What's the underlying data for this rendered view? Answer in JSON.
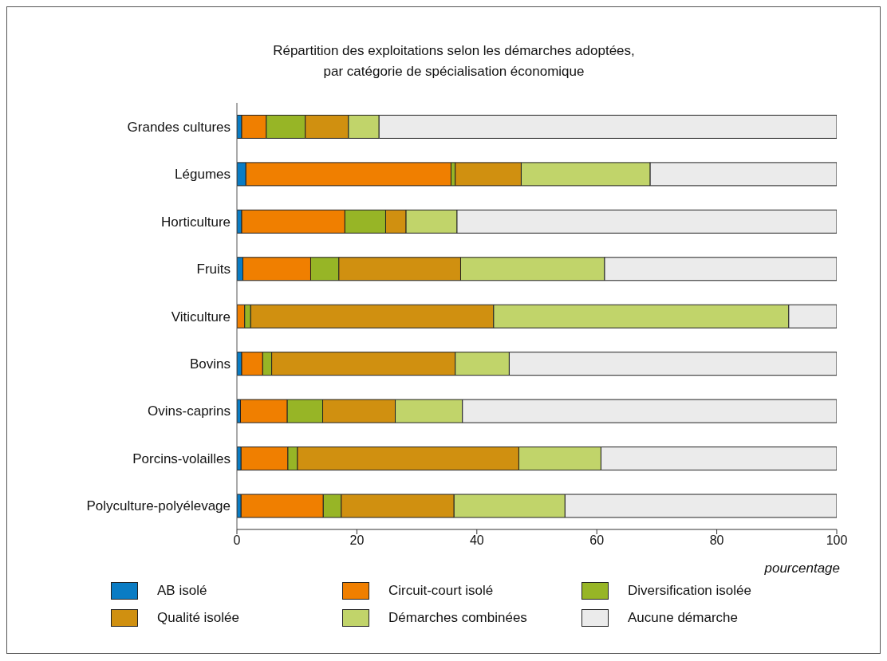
{
  "chart_data": {
    "type": "bar",
    "orientation": "horizontal",
    "stacked": true,
    "title": "Répartition des exploitations selon les démarches adoptées,\npar catégorie de spécialisation économique",
    "xlabel": "pourcentage",
    "categories": [
      "Grandes cultures",
      "Légumes",
      "Horticulture",
      "Fruits",
      "Viticulture",
      "Bovins",
      "Ovins-caprins",
      "Porcins-volailles",
      "Polyculture-polyélevage"
    ],
    "series": [
      {
        "name": "AB isolé",
        "color": "#0a7cc4",
        "values": [
          0.8,
          1.5,
          0.8,
          1.0,
          0,
          0.8,
          0.6,
          0.7,
          0.7
        ]
      },
      {
        "name": "Circuit-court isolé",
        "color": "#f07f00",
        "values": [
          4.1,
          34.2,
          17.2,
          11.3,
          1.3,
          3.5,
          7.8,
          7.8,
          13.7
        ]
      },
      {
        "name": "Diversification isolée",
        "color": "#97b526",
        "values": [
          6.5,
          0.7,
          6.8,
          4.7,
          1.0,
          1.5,
          5.9,
          1.6,
          3.0
        ]
      },
      {
        "name": "Qualité isolée",
        "color": "#d09010",
        "values": [
          7.2,
          11.0,
          3.4,
          20.3,
          40.5,
          30.6,
          12.1,
          36.9,
          18.8
        ]
      },
      {
        "name": "Démarches combinées",
        "color": "#c1d46a",
        "values": [
          5.1,
          21.5,
          8.5,
          24.0,
          49.2,
          9.0,
          11.2,
          13.7,
          18.5
        ]
      },
      {
        "name": "Aucune démarche",
        "color": "#ebebeb",
        "values": [
          76.3,
          31.1,
          63.3,
          38.7,
          8.0,
          54.6,
          62.4,
          39.3,
          45.3
        ]
      }
    ],
    "xlim": [
      0,
      100
    ],
    "xticks": [
      0,
      20,
      40,
      60,
      80,
      100
    ],
    "grid": false,
    "legend": "bottom"
  }
}
